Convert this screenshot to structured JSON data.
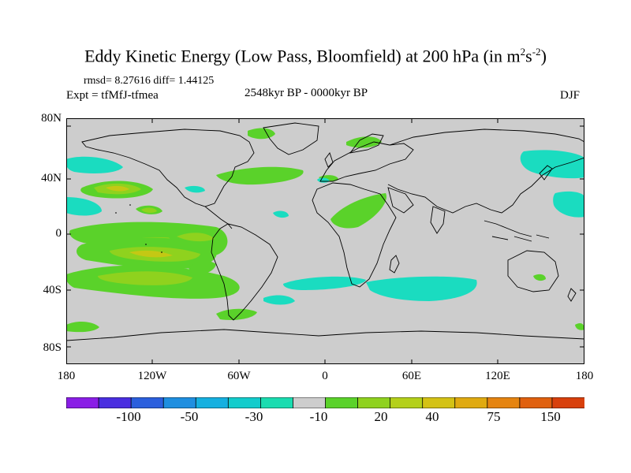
{
  "title": {
    "main": "Eddy Kinetic Energy (Low Pass, Bloomfield) at 200 hPa (in m",
    "sup1": "2",
    "mid": "s",
    "sup2": "-2",
    "end": ")"
  },
  "stats": {
    "rmsd": "rmsd= 8.27616 diff= 1.44125"
  },
  "labels": {
    "expt": "Expt = tfMfJ-tfmea",
    "period": "2548kyr BP - 0000kyr BP",
    "season": "DJF"
  },
  "axes": {
    "y_ticks": [
      "80N",
      "40N",
      "0",
      "40S",
      "80S"
    ],
    "x_ticks": [
      "180",
      "120W",
      "60W",
      "0",
      "60E",
      "120E",
      "180"
    ]
  },
  "colorbar": {
    "labels": [
      "-100",
      "-50",
      "-30",
      "-10",
      "20",
      "40",
      "75",
      "150"
    ],
    "colors": [
      "#8a1ee6",
      "#4a2ee0",
      "#2b5fdd",
      "#1f8fe0",
      "#15b0e0",
      "#12cccc",
      "#1adcb0",
      "#cdcdcd",
      "#5ad22a",
      "#8fd21e",
      "#b4d01a",
      "#d4c214",
      "#e0aa10",
      "#e58410",
      "#e0600e",
      "#d8400c"
    ]
  },
  "map": {
    "background": "#cdcdcd",
    "colors": {
      "green": "#5ad22a",
      "lightgreen": "#8fd21e",
      "yellow": "#c4c814",
      "cyan": "#1adcc0"
    }
  }
}
